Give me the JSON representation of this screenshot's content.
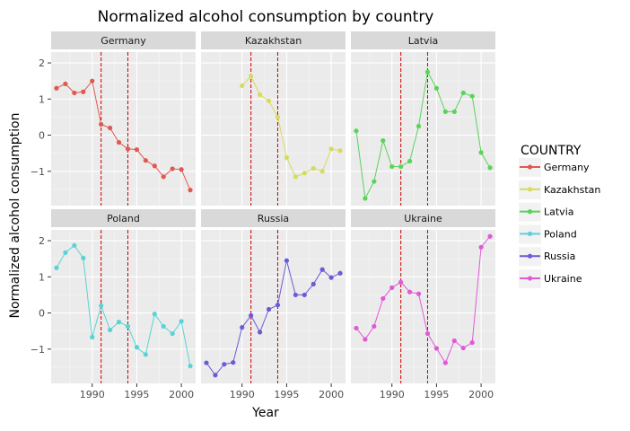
{
  "chart_data": {
    "type": "line",
    "title": "Normalized alcohol consumption by country",
    "xlabel": "Year",
    "ylabel": "Normalized alcohol consumption",
    "xlim": [
      1985.4,
      2001.6
    ],
    "ylim": [
      -1.95,
      2.3
    ],
    "x_ticks": [
      1990,
      1995,
      2000
    ],
    "x_tick_labels": [
      "1990",
      "1995",
      "2000"
    ],
    "y_ticks": [
      -1,
      0,
      1,
      2
    ],
    "y_tick_labels": [
      "−1",
      "0",
      "1",
      "2"
    ],
    "vlines": [
      1991,
      1994
    ],
    "vline_color": "#cc0000",
    "legend_title": "COUNTRY",
    "legend_position": "right",
    "grid": true,
    "panel_background": "#ebebeb",
    "strip_background": "#d9d9d9",
    "panels": [
      {
        "name": "Germany",
        "color": "#e0594f",
        "x": [
          1986,
          1987,
          1988,
          1989,
          1990,
          1991,
          1992,
          1993,
          1994,
          1995,
          1996,
          1997,
          1998,
          1999,
          2000,
          2001
        ],
        "y": [
          1.3,
          1.42,
          1.17,
          1.2,
          1.5,
          0.3,
          0.2,
          -0.2,
          -0.38,
          -0.4,
          -0.7,
          -0.85,
          -1.15,
          -0.93,
          -0.95,
          -1.52
        ]
      },
      {
        "name": "Kazakhstan",
        "color": "#d6db5c",
        "x": [
          1990,
          1991,
          1992,
          1993,
          1994,
          1995,
          1996,
          1997,
          1998,
          1999,
          2000,
          2001
        ],
        "y": [
          1.37,
          1.63,
          1.12,
          0.95,
          0.5,
          -0.62,
          -1.15,
          -1.05,
          -0.92,
          -1.0,
          -0.38,
          -0.43
        ]
      },
      {
        "name": "Latvia",
        "color": "#5ad35a",
        "x": [
          1986,
          1987,
          1988,
          1989,
          1990,
          1991,
          1992,
          1993,
          1994,
          1995,
          1996,
          1997,
          1998,
          1999,
          2000,
          2001
        ],
        "y": [
          0.12,
          -1.75,
          -1.28,
          -0.15,
          -0.87,
          -0.87,
          -0.72,
          0.25,
          1.75,
          1.3,
          0.65,
          0.65,
          1.17,
          1.08,
          -0.48,
          -0.9
        ]
      },
      {
        "name": "Poland",
        "color": "#5ad2d6",
        "x": [
          1986,
          1987,
          1988,
          1989,
          1990,
          1991,
          1992,
          1993,
          1994,
          1995,
          1996,
          1997,
          1998,
          1999,
          2000,
          2001
        ],
        "y": [
          1.25,
          1.67,
          1.87,
          1.52,
          -0.67,
          0.2,
          -0.47,
          -0.25,
          -0.37,
          -0.95,
          -1.15,
          -0.03,
          -0.37,
          -0.57,
          -0.23,
          -1.47
        ]
      },
      {
        "name": "Russia",
        "color": "#6a5bd6",
        "x": [
          1986,
          1987,
          1988,
          1989,
          1990,
          1991,
          1992,
          1993,
          1994,
          1995,
          1996,
          1997,
          1998,
          1999,
          2000,
          2001
        ],
        "y": [
          -1.38,
          -1.72,
          -1.42,
          -1.37,
          -0.4,
          -0.07,
          -0.53,
          0.1,
          0.22,
          1.45,
          0.5,
          0.5,
          0.8,
          1.2,
          0.98,
          1.1
        ]
      },
      {
        "name": "Ukraine",
        "color": "#e05ad6",
        "x": [
          1986,
          1987,
          1988,
          1989,
          1990,
          1991,
          1992,
          1993,
          1994,
          1995,
          1996,
          1997,
          1998,
          1999,
          2000,
          2001
        ],
        "y": [
          -0.42,
          -0.73,
          -0.37,
          0.4,
          0.7,
          0.85,
          0.58,
          0.53,
          -0.57,
          -0.98,
          -1.38,
          -0.77,
          -0.97,
          -0.82,
          1.82,
          2.12
        ]
      }
    ]
  }
}
